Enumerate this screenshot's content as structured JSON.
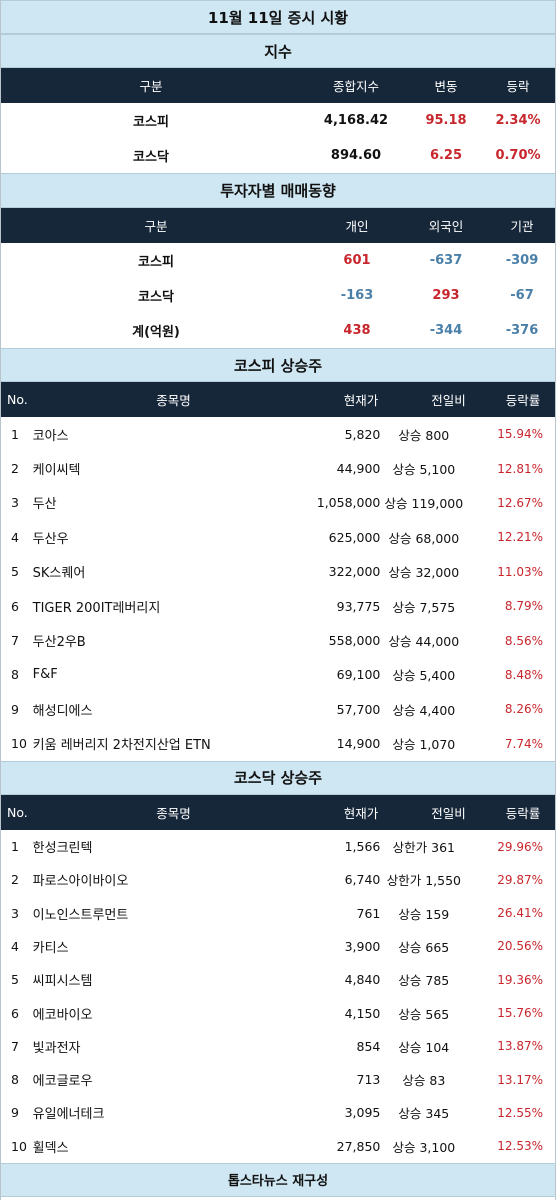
{
  "title": "11월 11일 증시 시황",
  "index_section": {
    "heading": "지수",
    "columns": [
      "구분",
      "종합지수",
      "변동",
      "등락"
    ],
    "rows": [
      {
        "name": "코스피",
        "index": "4,168.42",
        "change": "95.18",
        "rate": "2.34%"
      },
      {
        "name": "코스닥",
        "index": "894.60",
        "change": "6.25",
        "rate": "0.70%"
      }
    ]
  },
  "investor_section": {
    "heading": "투자자별 매매동향",
    "columns": [
      "구분",
      "개인",
      "외국인",
      "기관"
    ],
    "rows": [
      {
        "name": "코스피",
        "individual": "601",
        "foreign": "-637",
        "institution": "-309"
      },
      {
        "name": "코스닥",
        "individual": "-163",
        "foreign": "293",
        "institution": "-67"
      },
      {
        "name": "계(억원)",
        "individual": "438",
        "foreign": "-344",
        "institution": "-376"
      }
    ]
  },
  "kospi_section": {
    "heading": "코스피 상승주",
    "columns": [
      "No.",
      "종목명",
      "현재가",
      "전일비",
      "등락률"
    ],
    "rows": [
      {
        "no": "1",
        "name": "코아스",
        "price": "5,820",
        "diff": "상승 800",
        "rate": "15.94%"
      },
      {
        "no": "2",
        "name": "케이씨텍",
        "price": "44,900",
        "diff": "상승 5,100",
        "rate": "12.81%"
      },
      {
        "no": "3",
        "name": "두산",
        "price": "1,058,000",
        "diff": "상승 119,000",
        "rate": "12.67%"
      },
      {
        "no": "4",
        "name": "두산우",
        "price": "625,000",
        "diff": "상승 68,000",
        "rate": "12.21%"
      },
      {
        "no": "5",
        "name": "SK스퀘어",
        "price": "322,000",
        "diff": "상승 32,000",
        "rate": "11.03%"
      },
      {
        "no": "6",
        "name": "TIGER 200IT레버리지",
        "price": "93,775",
        "diff": "상승 7,575",
        "rate": "8.79%"
      },
      {
        "no": "7",
        "name": "두산2우B",
        "price": "558,000",
        "diff": "상승 44,000",
        "rate": "8.56%"
      },
      {
        "no": "8",
        "name": "F&F",
        "price": "69,100",
        "diff": "상승 5,400",
        "rate": "8.48%"
      },
      {
        "no": "9",
        "name": "해성디에스",
        "price": "57,700",
        "diff": "상승 4,400",
        "rate": "8.26%"
      },
      {
        "no": "10",
        "name": "키움 레버리지 2차전지산업 ETN",
        "price": "14,900",
        "diff": "상승 1,070",
        "rate": "7.74%"
      }
    ]
  },
  "kosdaq_section": {
    "heading": "코스닥 상승주",
    "columns": [
      "No.",
      "종목명",
      "현재가",
      "전일비",
      "등락률"
    ],
    "rows": [
      {
        "no": "1",
        "name": "한성크린텍",
        "price": "1,566",
        "diff": "상한가 361",
        "rate": "29.96%"
      },
      {
        "no": "2",
        "name": "파로스아이바이오",
        "price": "6,740",
        "diff": "상한가 1,550",
        "rate": "29.87%"
      },
      {
        "no": "3",
        "name": "이노인스트루먼트",
        "price": "761",
        "diff": "상승 159",
        "rate": "26.41%"
      },
      {
        "no": "4",
        "name": "카티스",
        "price": "3,900",
        "diff": "상승 665",
        "rate": "20.56%"
      },
      {
        "no": "5",
        "name": "씨피시스템",
        "price": "4,840",
        "diff": "상승 785",
        "rate": "19.36%"
      },
      {
        "no": "6",
        "name": "에코바이오",
        "price": "4,150",
        "diff": "상승 565",
        "rate": "15.76%"
      },
      {
        "no": "7",
        "name": "빛과전자",
        "price": "854",
        "diff": "상승 104",
        "rate": "13.87%"
      },
      {
        "no": "8",
        "name": "에코글로우",
        "price": "713",
        "diff": "상승 83",
        "rate": "13.17%"
      },
      {
        "no": "9",
        "name": "유일에너테크",
        "price": "3,095",
        "diff": "상승 345",
        "rate": "12.55%"
      },
      {
        "no": "10",
        "name": "휠덱스",
        "price": "27,850",
        "diff": "상승 3,100",
        "rate": "12.53%"
      }
    ]
  },
  "footer": "톱스타뉴스 재구성",
  "colors": {
    "band": "#cfe7f3",
    "header": "#17273a",
    "up": "#c8262d",
    "down": "#4a7fa8"
  }
}
